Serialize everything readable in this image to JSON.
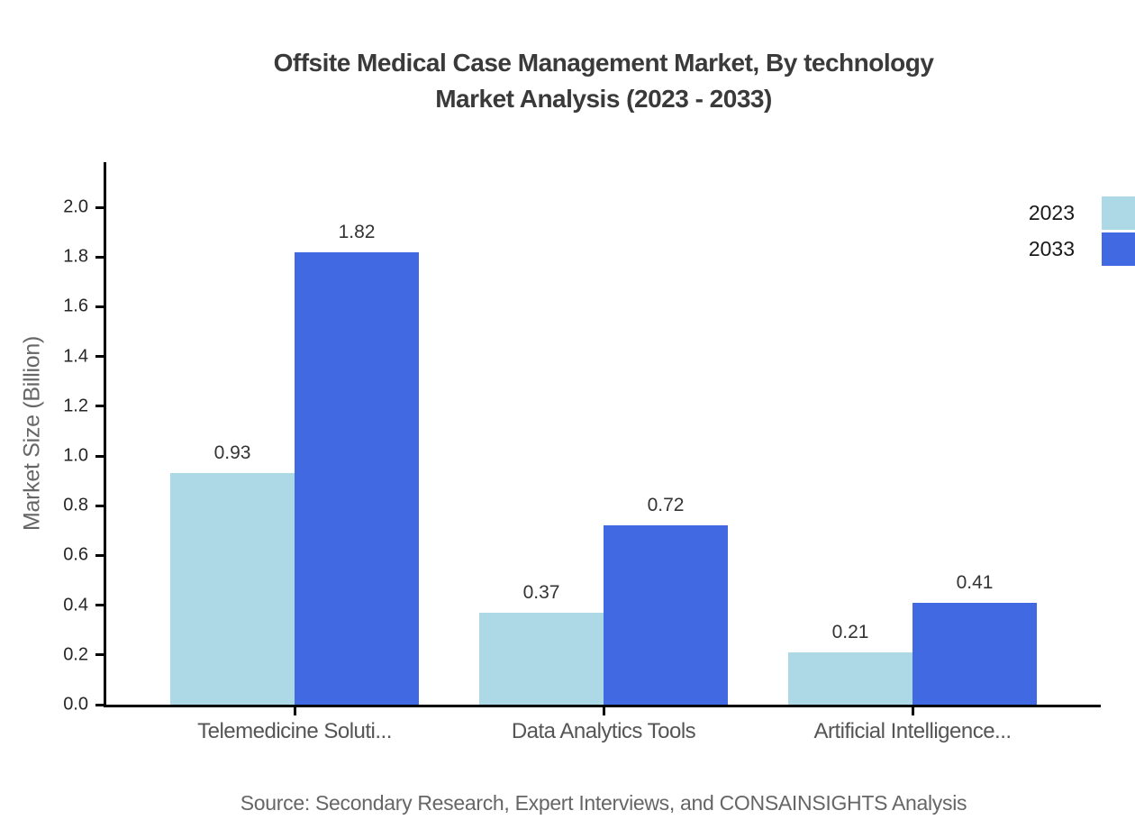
{
  "chart_data": {
    "type": "bar",
    "title": "Offsite Medical Case Management Market, By technology Market Analysis (2023 - 2033)",
    "title_lines": [
      "Offsite Medical Case Management Market, By technology",
      "Market Analysis (2023 - 2033)"
    ],
    "categories": [
      "Telemedicine Soluti...",
      "Data Analytics Tools",
      "Artificial Intelligence..."
    ],
    "series": [
      {
        "name": "2023",
        "color": "#add8e6",
        "values": [
          0.93,
          0.37,
          0.21
        ]
      },
      {
        "name": "2033",
        "color": "#4169e1",
        "values": [
          1.82,
          0.72,
          0.41
        ]
      }
    ],
    "xlabel": "",
    "ylabel": "Market Size (Billion)",
    "ylim": [
      0,
      2.18
    ],
    "yticks": [
      "0.0",
      "0.2",
      "0.4",
      "0.6",
      "0.8",
      "1.0",
      "1.2",
      "1.4",
      "1.6",
      "1.8",
      "2.0"
    ],
    "grid": false,
    "value_labels": true,
    "legend_position": "upper-right",
    "axis_color": "#000000",
    "source": "Source: Secondary Research, Expert Interviews, and CONSAINSIGHTS Analysis"
  }
}
